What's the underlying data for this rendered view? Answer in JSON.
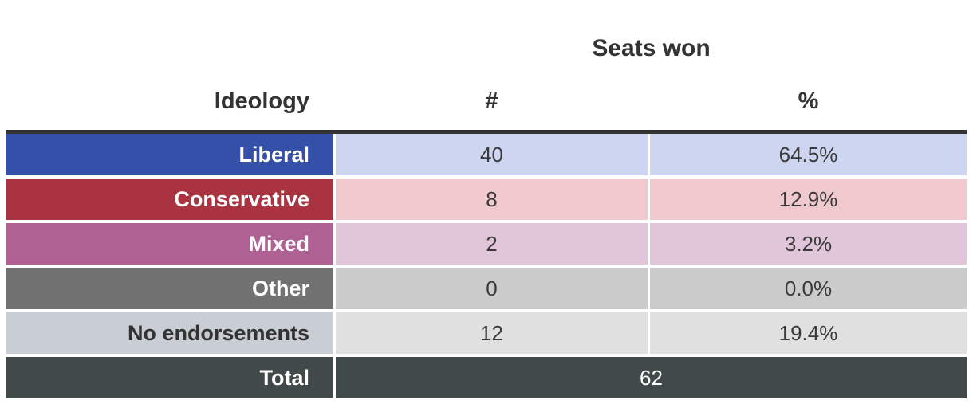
{
  "chart_data": {
    "type": "table",
    "title": "Seats won",
    "columns": [
      "Ideology",
      "#",
      "%"
    ],
    "rows": [
      {
        "label": "Liberal",
        "count": 40,
        "percent": "64.5%",
        "label_bg": "#3450a8",
        "label_text": "#ffffff",
        "cell_bg": "#cdd5f0",
        "cell_text": "#3a3a3a"
      },
      {
        "label": "Conservative",
        "count": 8,
        "percent": "12.9%",
        "label_bg": "#a93340",
        "label_text": "#ffffff",
        "cell_bg": "#efc9cd",
        "cell_text": "#3a3a3a"
      },
      {
        "label": "Mixed",
        "count": 2,
        "percent": "3.2%",
        "label_bg": "#ae6192",
        "label_text": "#ffffff",
        "cell_bg": "#e0c6d8",
        "cell_text": "#3a3a3a"
      },
      {
        "label": "Other",
        "count": 0,
        "percent": "0.0%",
        "label_bg": "#717171",
        "label_text": "#ffffff",
        "cell_bg": "#cbcbcb",
        "cell_text": "#3a3a3a"
      },
      {
        "label": "No endorsements",
        "count": 12,
        "percent": "19.4%",
        "label_bg": "#c9ced4",
        "label_text": "#333333",
        "cell_bg": "#e0e0e0",
        "cell_text": "#3a3a3a"
      }
    ],
    "total": {
      "label": "Total",
      "value": 62,
      "bg": "#424a49",
      "text": "#ffffff"
    },
    "layout": {
      "legend_position": "none",
      "grid": "off"
    }
  },
  "colors": {
    "header_text": "#333333",
    "top_border": "#333333",
    "background": "#ffffff"
  }
}
